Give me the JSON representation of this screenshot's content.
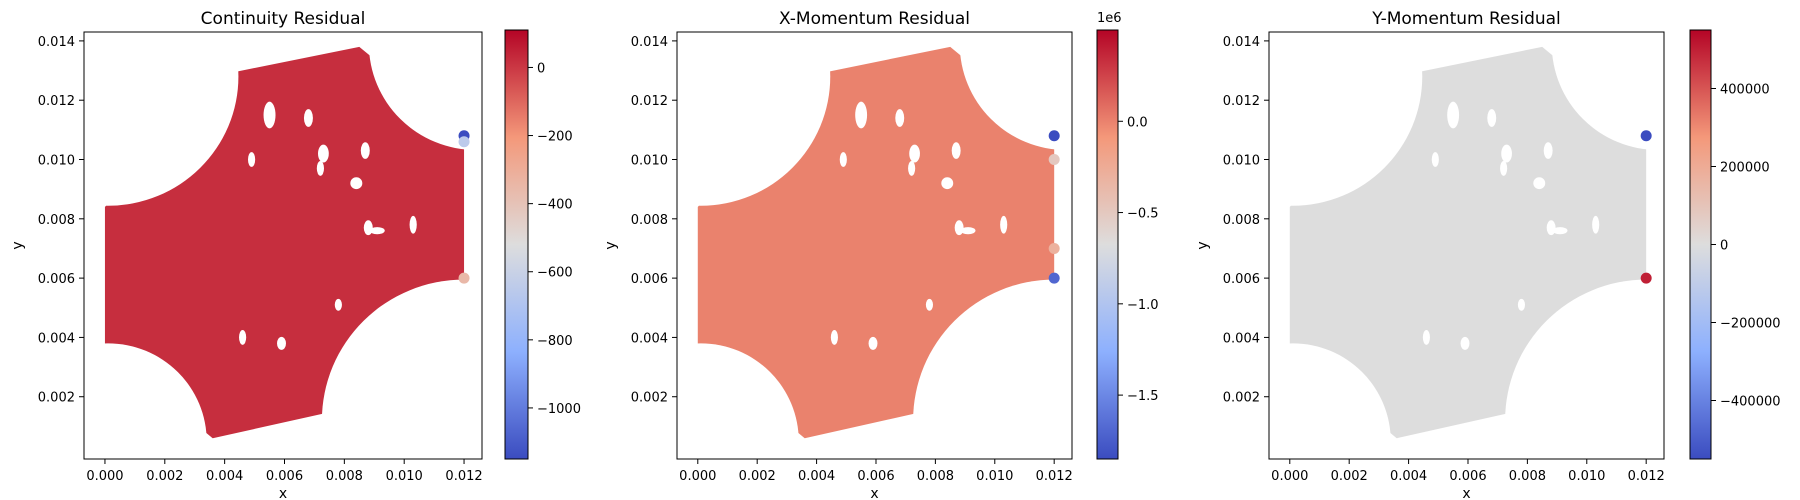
{
  "chart_data": [
    {
      "type": "scatter",
      "title": "Continuity Residual",
      "xlabel": "x",
      "ylabel": "y",
      "xlim": [
        -0.0007,
        0.0126
      ],
      "ylim": [
        -0.0001,
        0.0143
      ],
      "xticks": [
        0.0,
        0.002,
        0.004,
        0.006,
        0.008,
        0.01,
        0.012
      ],
      "yticks": [
        0.002,
        0.004,
        0.006,
        0.008,
        0.01,
        0.012,
        0.014
      ],
      "xtick_labels": [
        "0.000",
        "0.002",
        "0.004",
        "0.006",
        "0.008",
        "0.010",
        "0.012"
      ],
      "ytick_labels": [
        "0.002",
        "0.004",
        "0.006",
        "0.008",
        "0.010",
        "0.012",
        "0.014"
      ],
      "colormap": "coolwarm",
      "colorbar": {
        "range": [
          -1150,
          110
        ],
        "ticks": [
          0,
          -200,
          -400,
          -600,
          -800,
          -1000
        ],
        "tick_labels": [
          "0",
          "−200",
          "−400",
          "−600",
          "−800",
          "−1000"
        ],
        "offset_label": ""
      },
      "field_value": 20,
      "hotspots": [
        {
          "x": 0.012,
          "y": 0.0108,
          "value": -1150
        },
        {
          "x": 0.012,
          "y": 0.0106,
          "value": -650
        },
        {
          "x": 0.012,
          "y": 0.006,
          "value": -350
        }
      ]
    },
    {
      "type": "scatter",
      "title": "X-Momentum Residual",
      "xlabel": "x",
      "ylabel": "y",
      "xlim": [
        -0.0007,
        0.0126
      ],
      "ylim": [
        -0.0001,
        0.0143
      ],
      "xticks": [
        0.0,
        0.002,
        0.004,
        0.006,
        0.008,
        0.01,
        0.012
      ],
      "yticks": [
        0.002,
        0.004,
        0.006,
        0.008,
        0.01,
        0.012,
        0.014
      ],
      "xtick_labels": [
        "0.000",
        "0.002",
        "0.004",
        "0.006",
        "0.008",
        "0.010",
        "0.012"
      ],
      "ytick_labels": [
        "0.002",
        "0.004",
        "0.006",
        "0.008",
        "0.010",
        "0.012",
        "0.014"
      ],
      "colormap": "coolwarm",
      "colorbar": {
        "range": [
          -1850000,
          500000
        ],
        "ticks": [
          0,
          -500000,
          -1000000,
          -1500000
        ],
        "tick_labels": [
          "0.0",
          "−0.5",
          "−1.0",
          "−1.5"
        ],
        "offset_label": "1e6"
      },
      "field_value": 0,
      "hotspots": [
        {
          "x": 0.012,
          "y": 0.0108,
          "value": -1850000
        },
        {
          "x": 0.012,
          "y": 0.006,
          "value": -1700000
        },
        {
          "x": 0.012,
          "y": 0.01,
          "value": -500000
        },
        {
          "x": 0.012,
          "y": 0.007,
          "value": -300000
        }
      ]
    },
    {
      "type": "scatter",
      "title": "Y-Momentum Residual",
      "xlabel": "x",
      "ylabel": "y",
      "xlim": [
        -0.0007,
        0.0126
      ],
      "ylim": [
        -0.0001,
        0.0143
      ],
      "xticks": [
        0.0,
        0.002,
        0.004,
        0.006,
        0.008,
        0.01,
        0.012
      ],
      "yticks": [
        0.002,
        0.004,
        0.006,
        0.008,
        0.01,
        0.012,
        0.014
      ],
      "xtick_labels": [
        "0.000",
        "0.002",
        "0.004",
        "0.006",
        "0.008",
        "0.010",
        "0.012"
      ],
      "ytick_labels": [
        "0.002",
        "0.004",
        "0.006",
        "0.008",
        "0.010",
        "0.012",
        "0.014"
      ],
      "colormap": "coolwarm",
      "colorbar": {
        "range": [
          -550000,
          550000
        ],
        "ticks": [
          400000,
          200000,
          0,
          -200000,
          -400000
        ],
        "tick_labels": [
          "400000",
          "200000",
          "0",
          "−200000",
          "−400000"
        ],
        "offset_label": ""
      },
      "field_value": 0,
      "hotspots": [
        {
          "x": 0.012,
          "y": 0.0108,
          "value": -550000
        },
        {
          "x": 0.012,
          "y": 0.006,
          "value": 500000
        }
      ]
    }
  ]
}
